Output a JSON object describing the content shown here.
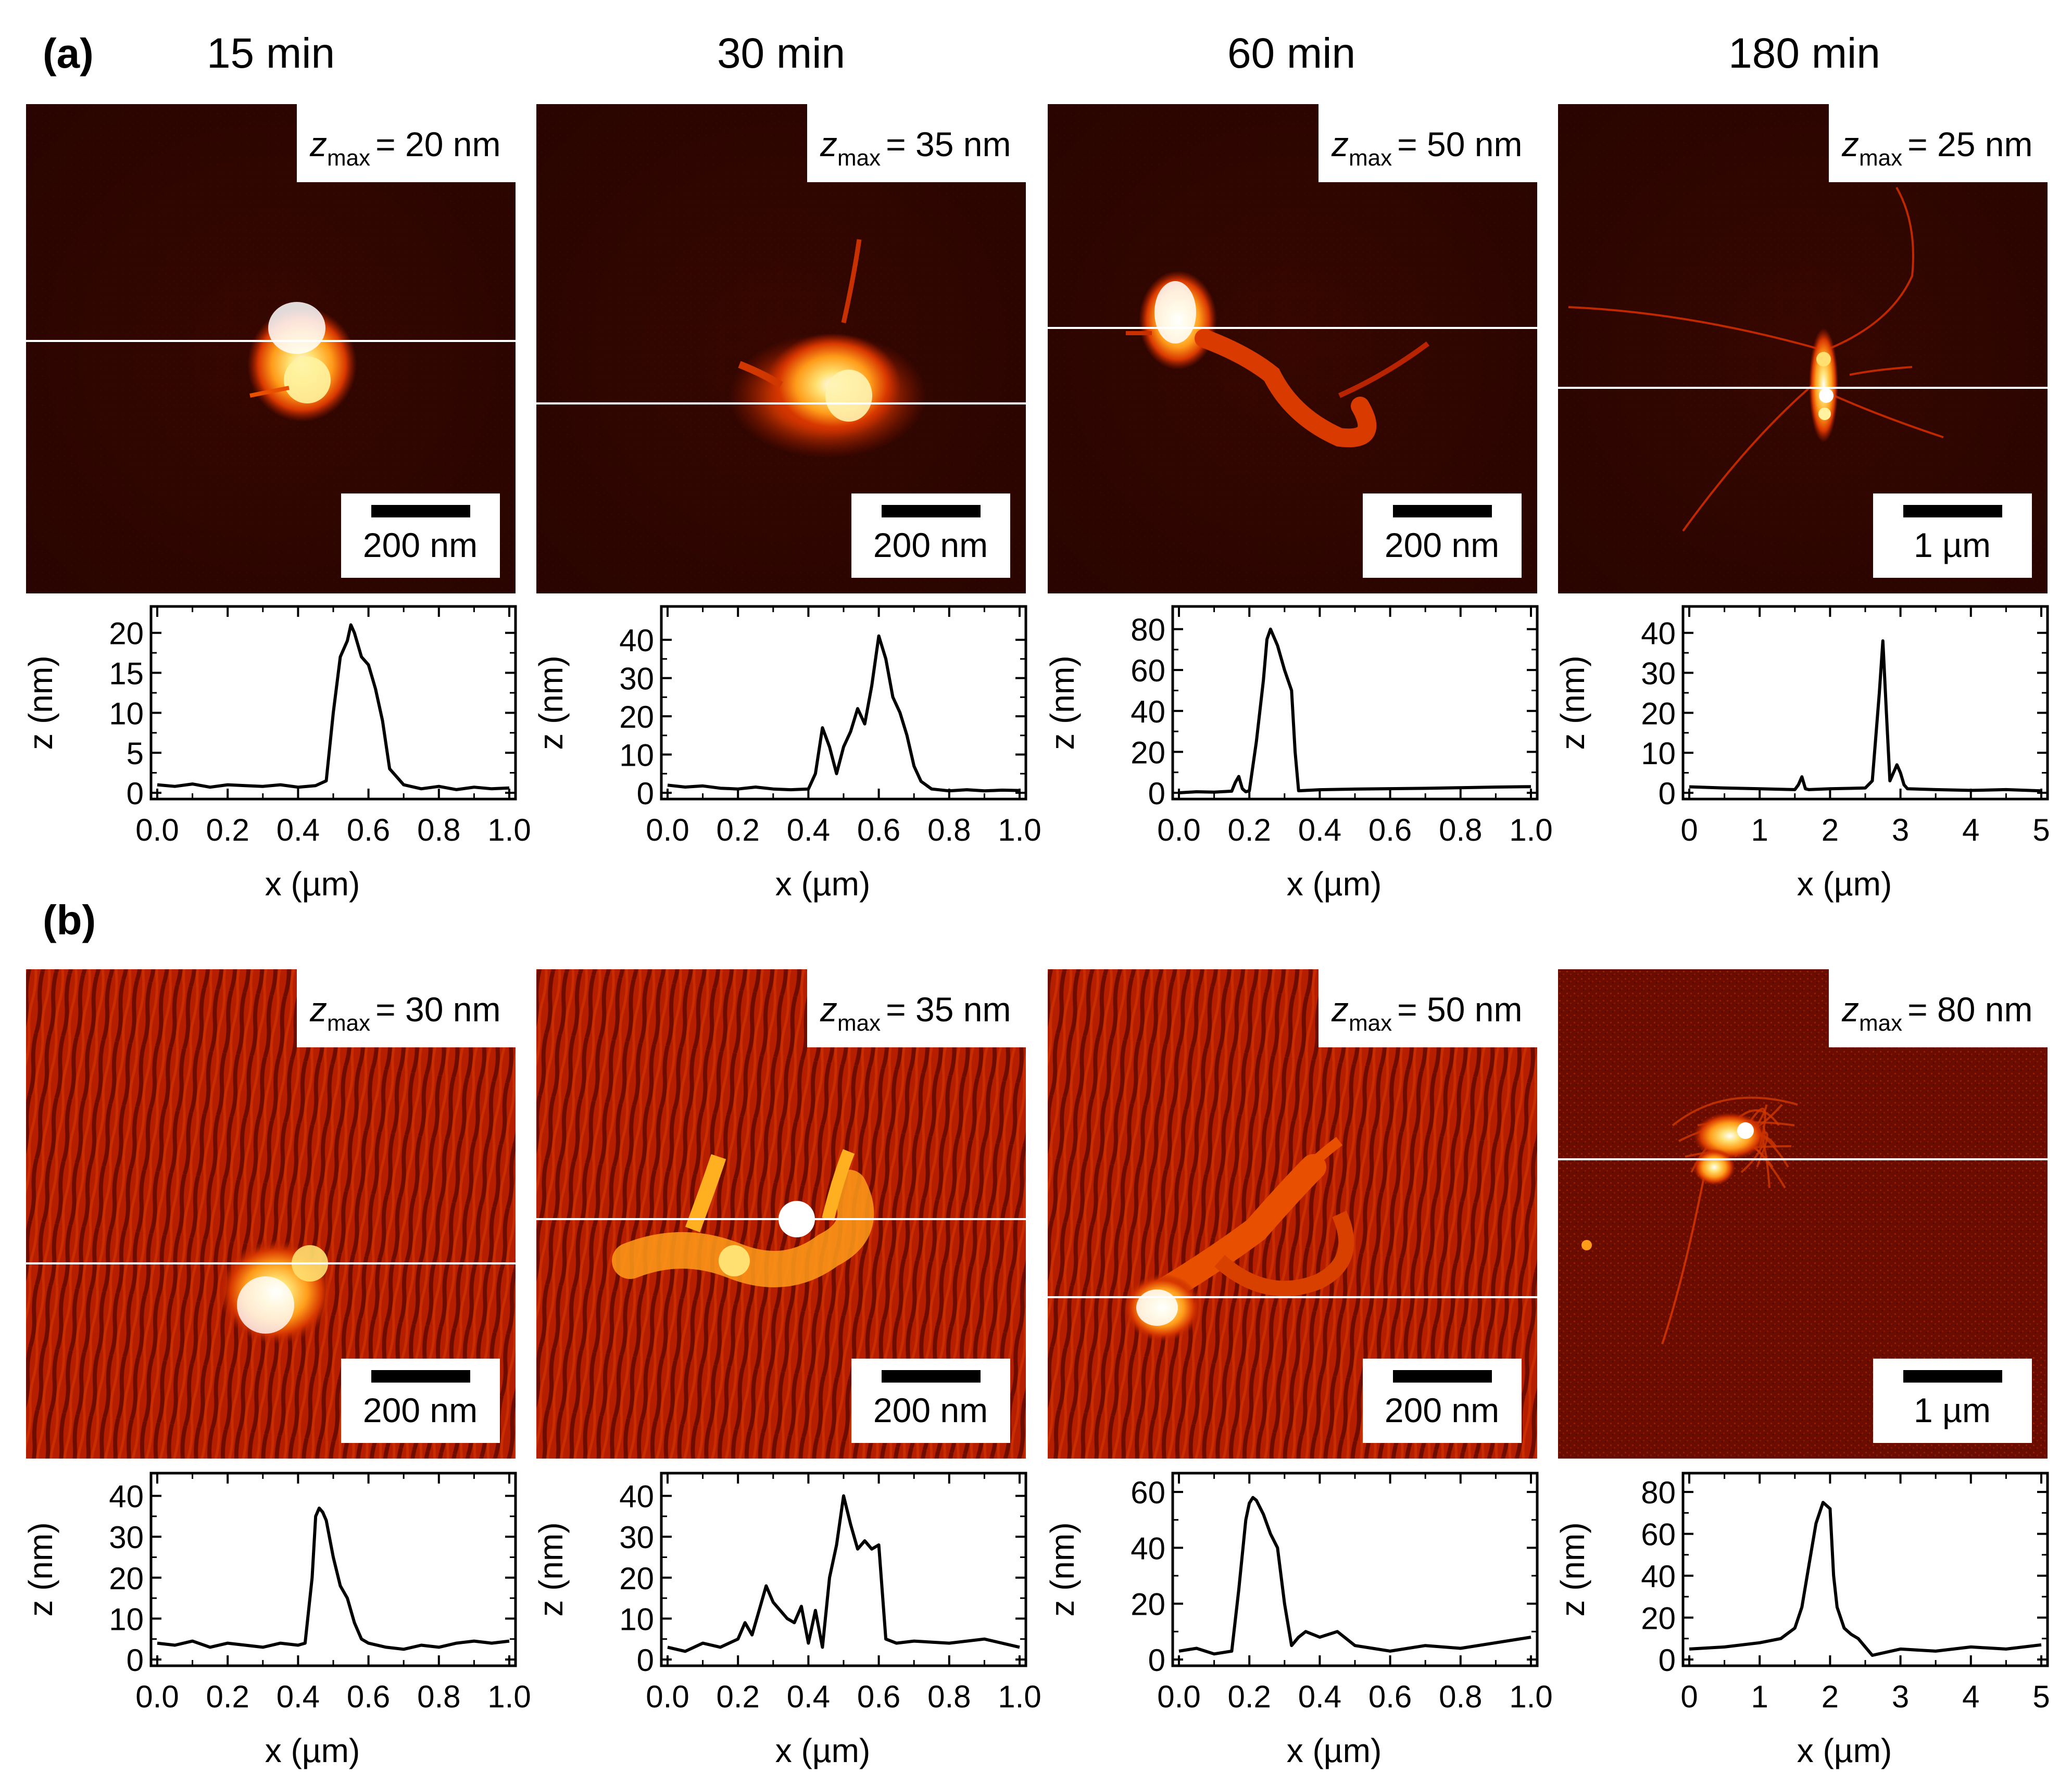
{
  "panel_labels": {
    "a": "(a)",
    "b": "(b)"
  },
  "time_labels": [
    "15 min",
    "30 min",
    "60 min",
    "180 min"
  ],
  "axis_labels": {
    "ylabel": "z (nm)",
    "xlabel": "x (µm)"
  },
  "colors": {
    "background_dark": "#2a0500",
    "colormap": [
      "#1a0300",
      "#5a0a00",
      "#b01e00",
      "#e84a00",
      "#ff9c1a",
      "#ffe070",
      "#ffffff"
    ],
    "profile_line": "#ffffff",
    "plot_line": "#000000"
  },
  "images": [
    {
      "id": "a15",
      "row": "a",
      "zmax_prefix": "z",
      "zmax_sub": "max",
      "zmax_value": "= 20 nm",
      "scalebar": "200 nm",
      "background": "smooth"
    },
    {
      "id": "a30",
      "row": "a",
      "zmax_prefix": "z",
      "zmax_sub": "max",
      "zmax_value": "= 35 nm",
      "scalebar": "200 nm",
      "background": "smooth"
    },
    {
      "id": "a60",
      "row": "a",
      "zmax_prefix": "z",
      "zmax_sub": "max",
      "zmax_value": "= 50 nm",
      "scalebar": "200 nm",
      "background": "smooth"
    },
    {
      "id": "a180",
      "row": "a",
      "zmax_prefix": "z",
      "zmax_sub": "max",
      "zmax_value": "= 25 nm",
      "scalebar": "1 µm",
      "background": "smooth"
    },
    {
      "id": "b15",
      "row": "b",
      "zmax_prefix": "z",
      "zmax_sub": "max",
      "zmax_value": "= 30 nm",
      "scalebar": "200 nm",
      "background": "rippled"
    },
    {
      "id": "b30",
      "row": "b",
      "zmax_prefix": "z",
      "zmax_sub": "max",
      "zmax_value": "= 35 nm",
      "scalebar": "200 nm",
      "background": "rippled"
    },
    {
      "id": "b60",
      "row": "b",
      "zmax_prefix": "z",
      "zmax_sub": "max",
      "zmax_value": "= 50 nm",
      "scalebar": "200 nm",
      "background": "rippled"
    },
    {
      "id": "b180",
      "row": "b",
      "zmax_prefix": "z",
      "zmax_sub": "max",
      "zmax_value": "= 80 nm",
      "scalebar": "1 µm",
      "background": "noisy"
    }
  ],
  "chart_data": [
    {
      "type": "line",
      "panel": "a",
      "time": "15 min",
      "xlabel": "x (µm)",
      "ylabel": "z (nm)",
      "xlim": [
        0,
        1.0
      ],
      "ylim": [
        0,
        22
      ],
      "xticks": [
        "0.0",
        "0.2",
        "0.4",
        "0.6",
        "0.8",
        "1.0"
      ],
      "yticks": [
        "0",
        "5",
        "10",
        "15",
        "20"
      ],
      "x": [
        0,
        0.05,
        0.1,
        0.15,
        0.2,
        0.25,
        0.3,
        0.35,
        0.4,
        0.45,
        0.48,
        0.5,
        0.52,
        0.54,
        0.55,
        0.56,
        0.58,
        0.6,
        0.62,
        0.64,
        0.66,
        0.7,
        0.75,
        0.8,
        0.85,
        0.9,
        0.95,
        1.0
      ],
      "y": [
        1,
        0.8,
        1.1,
        0.7,
        1,
        0.9,
        0.8,
        1,
        0.7,
        0.9,
        1.5,
        10,
        17,
        19,
        21,
        20,
        17,
        16,
        13,
        9,
        3,
        1,
        0.5,
        0.8,
        0.4,
        0.7,
        0.5,
        0.6
      ]
    },
    {
      "type": "line",
      "panel": "a",
      "time": "30 min",
      "xlabel": "x (µm)",
      "ylabel": "z (nm)",
      "xlim": [
        0,
        1.0
      ],
      "ylim": [
        0,
        46
      ],
      "xticks": [
        "0.0",
        "0.2",
        "0.4",
        "0.6",
        "0.8",
        "1.0"
      ],
      "yticks": [
        "0",
        "10",
        "20",
        "30",
        "40"
      ],
      "x": [
        0,
        0.05,
        0.1,
        0.15,
        0.2,
        0.25,
        0.3,
        0.35,
        0.4,
        0.42,
        0.44,
        0.46,
        0.48,
        0.5,
        0.52,
        0.54,
        0.56,
        0.58,
        0.6,
        0.62,
        0.64,
        0.66,
        0.68,
        0.7,
        0.72,
        0.75,
        0.8,
        0.85,
        0.9,
        0.95,
        1.0
      ],
      "y": [
        2,
        1.5,
        1.8,
        1.2,
        1,
        1.5,
        1,
        0.8,
        1,
        5,
        17,
        12,
        5,
        12,
        16,
        22,
        18,
        28,
        41,
        35,
        25,
        21,
        15,
        7,
        3,
        1,
        0.5,
        0.8,
        0.5,
        0.7,
        0.6
      ]
    },
    {
      "type": "line",
      "panel": "a",
      "time": "60 min",
      "xlabel": "x (µm)",
      "ylabel": "z (nm)",
      "xlim": [
        0,
        1.0
      ],
      "ylim": [
        0,
        86
      ],
      "xticks": [
        "0.0",
        "0.2",
        "0.4",
        "0.6",
        "0.8",
        "1.0"
      ],
      "yticks": [
        "0",
        "20",
        "40",
        "60",
        "80"
      ],
      "x": [
        0,
        0.05,
        0.1,
        0.15,
        0.16,
        0.17,
        0.18,
        0.19,
        0.2,
        0.22,
        0.24,
        0.25,
        0.26,
        0.28,
        0.3,
        0.32,
        0.33,
        0.34,
        0.4,
        0.5,
        0.6,
        0.7,
        0.8,
        0.9,
        1.0
      ],
      "y": [
        0,
        0.5,
        0.3,
        0.8,
        5,
        8,
        2,
        0.5,
        1,
        25,
        55,
        75,
        80,
        72,
        60,
        50,
        20,
        1,
        1.5,
        1.8,
        2,
        2.2,
        2.5,
        2.8,
        3
      ]
    },
    {
      "type": "line",
      "panel": "a",
      "time": "180 min",
      "xlabel": "x (µm)",
      "ylabel": "z (nm)",
      "xlim": [
        0,
        5
      ],
      "ylim": [
        0,
        44
      ],
      "xticks": [
        "0",
        "1",
        "2",
        "3",
        "4",
        "5"
      ],
      "yticks": [
        "0",
        "10",
        "20",
        "30",
        "40"
      ],
      "x": [
        0,
        0.5,
        1,
        1.5,
        1.55,
        1.6,
        1.65,
        1.7,
        2,
        2.5,
        2.6,
        2.7,
        2.75,
        2.8,
        2.85,
        2.9,
        2.95,
        3.0,
        3.05,
        3.1,
        3.5,
        4,
        4.5,
        5
      ],
      "y": [
        1.5,
        1.2,
        1,
        0.8,
        2,
        4,
        1,
        0.8,
        1,
        1.2,
        3,
        25,
        38,
        20,
        3,
        5,
        7,
        5,
        2,
        1,
        0.8,
        0.6,
        0.8,
        0.5
      ]
    },
    {
      "type": "line",
      "panel": "b",
      "time": "15 min",
      "xlabel": "x (µm)",
      "ylabel": "z (nm)",
      "xlim": [
        0,
        1.0
      ],
      "ylim": [
        0,
        43
      ],
      "xticks": [
        "0.0",
        "0.2",
        "0.4",
        "0.6",
        "0.8",
        "1.0"
      ],
      "yticks": [
        "0",
        "10",
        "20",
        "30",
        "40"
      ],
      "x": [
        0,
        0.05,
        0.1,
        0.15,
        0.2,
        0.25,
        0.3,
        0.35,
        0.4,
        0.42,
        0.44,
        0.45,
        0.46,
        0.47,
        0.48,
        0.5,
        0.52,
        0.54,
        0.56,
        0.58,
        0.6,
        0.65,
        0.7,
        0.75,
        0.8,
        0.85,
        0.9,
        0.95,
        1.0
      ],
      "y": [
        4,
        3.5,
        4.5,
        3,
        4,
        3.5,
        3,
        4,
        3.5,
        4,
        20,
        35,
        37,
        36,
        34,
        25,
        18,
        15,
        9,
        5,
        4,
        3,
        2.5,
        3.5,
        3,
        4,
        4.5,
        4,
        4.5
      ]
    },
    {
      "type": "line",
      "panel": "b",
      "time": "30 min",
      "xlabel": "x (µm)",
      "ylabel": "z (nm)",
      "xlim": [
        0,
        1.0
      ],
      "ylim": [
        0,
        43
      ],
      "xticks": [
        "0.0",
        "0.2",
        "0.4",
        "0.6",
        "0.8",
        "1.0"
      ],
      "yticks": [
        "0",
        "10",
        "20",
        "30",
        "40"
      ],
      "x": [
        0,
        0.05,
        0.1,
        0.15,
        0.2,
        0.22,
        0.24,
        0.26,
        0.28,
        0.3,
        0.32,
        0.34,
        0.36,
        0.38,
        0.4,
        0.42,
        0.44,
        0.46,
        0.48,
        0.5,
        0.52,
        0.54,
        0.56,
        0.58,
        0.6,
        0.62,
        0.65,
        0.7,
        0.8,
        0.9,
        1.0
      ],
      "y": [
        3,
        2,
        4,
        3,
        5,
        9,
        6,
        12,
        18,
        14,
        12,
        10,
        9,
        13,
        4,
        12,
        3,
        20,
        28,
        40,
        33,
        27,
        29,
        27,
        28,
        5,
        4,
        4.5,
        4,
        5,
        3
      ]
    },
    {
      "type": "line",
      "panel": "b",
      "time": "60 min",
      "xlabel": "x (µm)",
      "ylabel": "z (nm)",
      "xlim": [
        0,
        1.0
      ],
      "ylim": [
        0,
        63
      ],
      "xticks": [
        "0.0",
        "0.2",
        "0.4",
        "0.6",
        "0.8",
        "1.0"
      ],
      "yticks": [
        "0",
        "20",
        "40",
        "60"
      ],
      "x": [
        0,
        0.05,
        0.1,
        0.15,
        0.17,
        0.19,
        0.2,
        0.21,
        0.22,
        0.24,
        0.26,
        0.28,
        0.3,
        0.32,
        0.34,
        0.36,
        0.4,
        0.45,
        0.5,
        0.55,
        0.6,
        0.7,
        0.8,
        0.9,
        1.0
      ],
      "y": [
        3,
        4,
        2,
        3,
        25,
        50,
        56,
        58,
        57,
        52,
        45,
        40,
        20,
        5,
        8,
        10,
        8,
        10,
        5,
        4,
        3,
        5,
        4,
        6,
        8
      ]
    },
    {
      "type": "line",
      "panel": "b",
      "time": "180 min",
      "xlabel": "x (µm)",
      "ylabel": "z (nm)",
      "xlim": [
        0,
        5
      ],
      "ylim": [
        0,
        84
      ],
      "xticks": [
        "0",
        "1",
        "2",
        "3",
        "4",
        "5"
      ],
      "yticks": [
        "0",
        "20",
        "40",
        "60",
        "80"
      ],
      "x": [
        0,
        0.5,
        1,
        1.3,
        1.5,
        1.6,
        1.7,
        1.8,
        1.9,
        2.0,
        2.05,
        2.1,
        2.2,
        2.3,
        2.4,
        2.5,
        2.6,
        3,
        3.5,
        4,
        4.5,
        5
      ],
      "y": [
        5,
        6,
        8,
        10,
        15,
        25,
        45,
        65,
        75,
        72,
        40,
        25,
        15,
        12,
        10,
        6,
        2,
        5,
        4,
        6,
        5,
        7
      ]
    }
  ]
}
